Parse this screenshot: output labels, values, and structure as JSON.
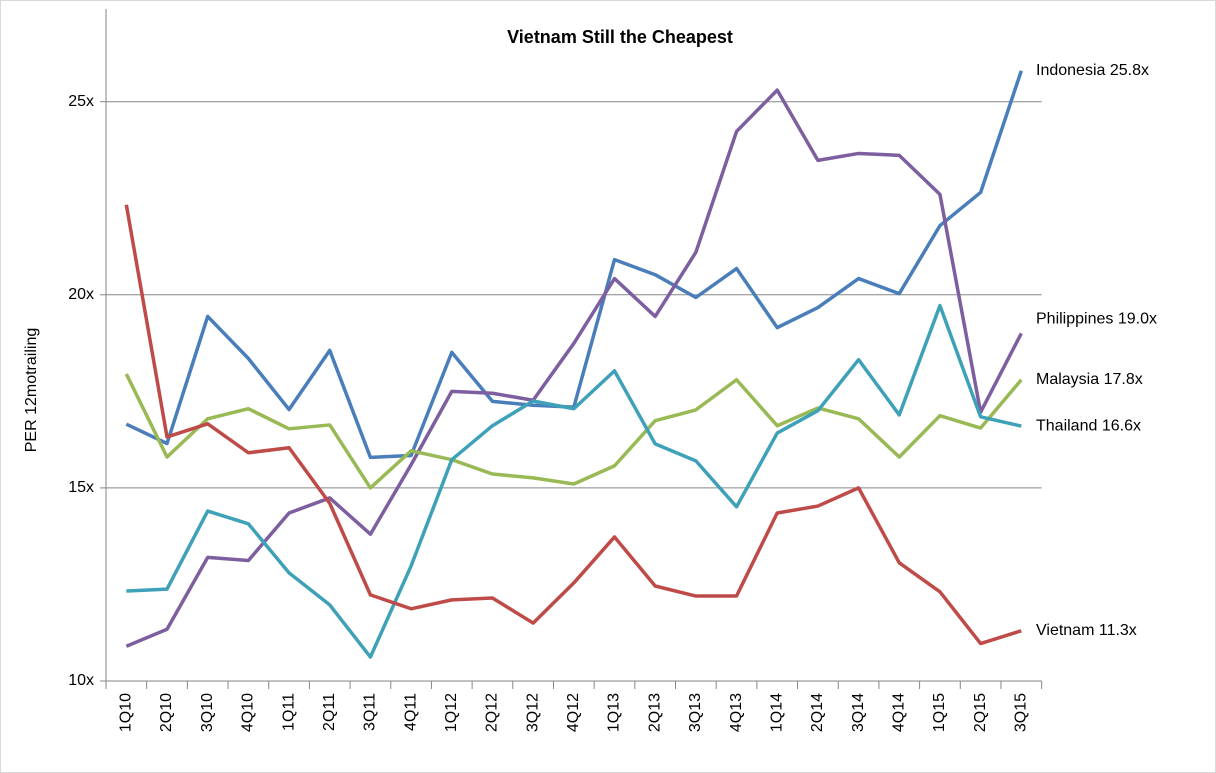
{
  "chart_data": {
    "type": "line",
    "title": "Vietnam Still the Cheapest",
    "ylabel": "PER 12motrailing",
    "categories": [
      "1Q10",
      "2Q10",
      "3Q10",
      "4Q10",
      "1Q11",
      "2Q11",
      "3Q11",
      "4Q11",
      "1Q12",
      "2Q12",
      "3Q12",
      "4Q12",
      "1Q13",
      "2Q13",
      "3Q13",
      "4Q13",
      "1Q14",
      "2Q14",
      "3Q14",
      "4Q14",
      "1Q15",
      "2Q15",
      "3Q15"
    ],
    "series": [
      {
        "name": "Indonesia",
        "end_label": "Indonesia 25.8x",
        "color": "#4a7ebb",
        "values": [
          16.65,
          16.15,
          19.44,
          18.35,
          17.03,
          18.56,
          15.79,
          15.84,
          18.51,
          17.24,
          17.14,
          17.09,
          20.91,
          20.52,
          19.93,
          20.68,
          19.15,
          19.67,
          20.42,
          20.03,
          21.79,
          22.65,
          25.8
        ]
      },
      {
        "name": "Philippines",
        "end_label": "Philippines 19.0x",
        "color": "#7d5fa0",
        "values": [
          10.9,
          11.34,
          13.2,
          13.12,
          14.35,
          14.74,
          13.8,
          15.6,
          17.5,
          17.45,
          17.27,
          18.74,
          20.42,
          19.44,
          21.1,
          24.23,
          25.3,
          23.48,
          23.66,
          23.61,
          22.6,
          16.96,
          19.0
        ]
      },
      {
        "name": "Malaysia",
        "end_label": "Malaysia 17.8x",
        "color": "#98b954",
        "values": [
          17.95,
          15.8,
          16.79,
          17.05,
          16.53,
          16.63,
          15.0,
          15.96,
          15.73,
          15.36,
          15.26,
          15.1,
          15.57,
          16.74,
          17.02,
          17.8,
          16.61,
          17.07,
          16.79,
          15.8,
          16.87,
          16.55,
          17.8
        ]
      },
      {
        "name": "Thailand",
        "end_label": "Thailand 16.6x",
        "color": "#3fa1b8",
        "values": [
          12.33,
          12.38,
          14.4,
          14.07,
          12.8,
          11.97,
          10.62,
          12.98,
          15.73,
          16.61,
          17.25,
          17.05,
          18.03,
          16.14,
          15.7,
          14.51,
          16.42,
          17.0,
          18.32,
          16.89,
          19.72,
          16.84,
          16.6
        ]
      },
      {
        "name": "Vietnam",
        "end_label": "Vietnam 11.3x",
        "color": "#be4b48",
        "values": [
          22.33,
          16.32,
          16.66,
          15.91,
          16.04,
          14.6,
          12.23,
          11.87,
          12.1,
          12.15,
          11.5,
          12.54,
          13.73,
          12.46,
          12.2,
          12.2,
          14.35,
          14.53,
          15.0,
          13.06,
          12.31,
          10.97,
          11.3
        ]
      }
    ],
    "ylim": [
      10,
      27.4
    ],
    "yticks": [
      {
        "value": 10,
        "label": "10x"
      },
      {
        "value": 15,
        "label": "15x"
      },
      {
        "value": 20,
        "label": "20x"
      },
      {
        "value": 25,
        "label": "25x"
      }
    ],
    "grid": true
  }
}
